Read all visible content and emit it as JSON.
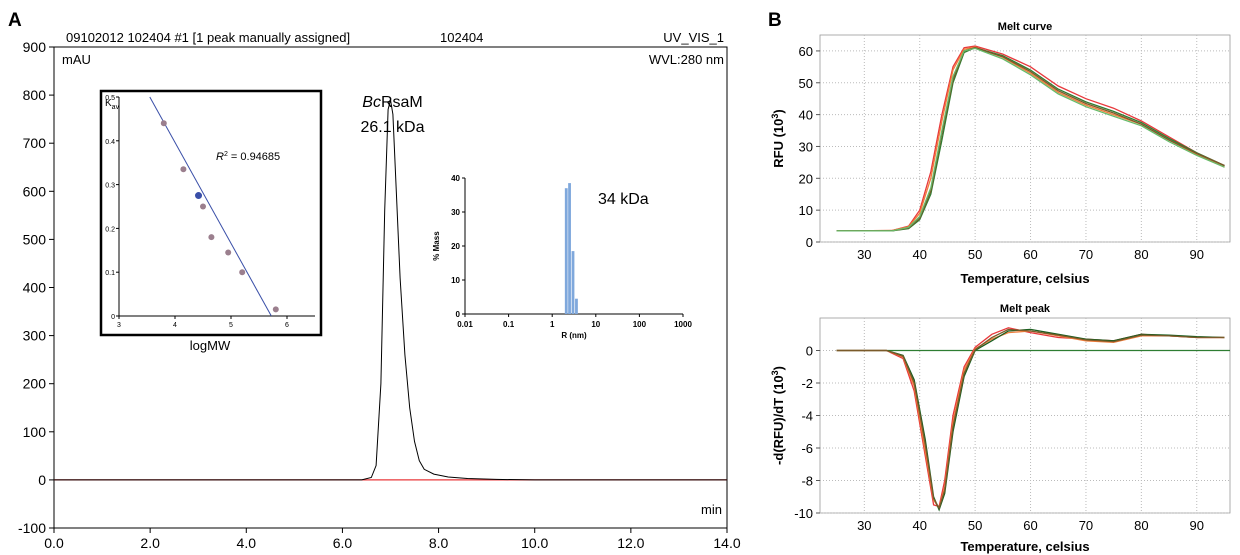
{
  "panel_labels": {
    "a": "A",
    "b": "B"
  },
  "chart_data": [
    {
      "id": "chromatogram",
      "type": "line",
      "header": {
        "left": "09102012 102404 #1 [1 peak manually assigned]",
        "middle": "102404",
        "right": "UV_VIS_1",
        "wvl": "WVL:280 nm"
      },
      "yunit": "mAU",
      "xunit": "min",
      "xlim": [
        0,
        14
      ],
      "ylim": [
        -100,
        900
      ],
      "xticks": [
        0,
        2,
        4,
        6,
        8,
        10,
        12,
        14
      ],
      "xtick_labels": [
        "0.0",
        "2.0",
        "4.0",
        "6.0",
        "8.0",
        "10.0",
        "12.0",
        "14.0"
      ],
      "yticks": [
        -100,
        0,
        100,
        200,
        300,
        400,
        500,
        600,
        700,
        800,
        900
      ],
      "ytick_labels": [
        "-100",
        "0",
        "100",
        "200",
        "300",
        "400",
        "500",
        "600",
        "700",
        "800",
        "900"
      ],
      "baseline_color": "#e8383b",
      "trace_color": "#000000",
      "peak_annotation": {
        "italic": "Bc",
        "rest": "RsaM",
        "mass": "26.1 kDa",
        "x": 7.0,
        "y": 790
      },
      "series": [
        {
          "x": [
            0,
            6.4,
            6.6,
            6.7,
            6.8,
            6.88,
            6.95,
            7.0,
            7.05,
            7.12,
            7.2,
            7.3,
            7.4,
            7.5,
            7.6,
            7.7,
            7.9,
            8.2,
            8.6,
            9.2,
            10,
            14
          ],
          "y": [
            0,
            0,
            5,
            30,
            200,
            560,
            770,
            790,
            760,
            600,
            420,
            260,
            150,
            80,
            40,
            22,
            12,
            6,
            3,
            1,
            0,
            0
          ]
        }
      ]
    },
    {
      "id": "calibration-inset",
      "type": "scatter",
      "ylabel": "K",
      "ylabel_sub": "av",
      "xlabel": "logMW",
      "xlim": [
        3,
        6.5
      ],
      "ylim": [
        0,
        0.5
      ],
      "xticks": [
        3,
        4,
        5,
        6
      ],
      "yticks": [
        0,
        0.1,
        0.2,
        0.3,
        0.4,
        0.5
      ],
      "ytick_labels": [
        "0",
        "0.1",
        "0.2",
        "0.3",
        "0.4",
        "0.5"
      ],
      "r2_label": "R",
      "r2_value": " = 0.94685",
      "points": {
        "x": [
          3.8,
          4.15,
          4.5,
          4.65,
          4.95,
          5.2,
          5.8
        ],
        "y": [
          0.44,
          0.335,
          0.25,
          0.18,
          0.145,
          0.1,
          0.015
        ]
      },
      "sample_point": {
        "x": 4.42,
        "y": 0.275
      },
      "fit_line": {
        "x": [
          3.55,
          5.72
        ],
        "y": [
          0.5,
          0.0
        ]
      },
      "point_color": "#9b7f8e",
      "sample_color": "#3a4fa8",
      "line_color": "#3a4fa8"
    },
    {
      "id": "dls-inset",
      "type": "bar",
      "ylabel": "% Mass",
      "xlabel": "R (nm)",
      "xscale": "log",
      "xlim": [
        0.01,
        1000
      ],
      "ylim": [
        0,
        40
      ],
      "xticks": [
        0.01,
        0.1,
        1,
        10,
        100,
        1000
      ],
      "xtick_labels": [
        "0.01",
        "0.1",
        "1",
        "10",
        "100",
        "1000"
      ],
      "yticks": [
        0,
        10,
        20,
        30,
        40
      ],
      "bars": {
        "x": [
          2.1,
          2.5,
          3.0,
          3.6
        ],
        "y": [
          37,
          38.5,
          18.5,
          4.5
        ]
      },
      "annotation": "34 kDa",
      "bar_color": "#7fa8dc"
    },
    {
      "id": "melt-curve",
      "type": "line",
      "title": "Melt curve",
      "xlabel": "Temperature, celsius",
      "ylabel": "RFU (10",
      "ylabel_sup": "3",
      "ylabel_end": ")",
      "xlim": [
        22,
        96
      ],
      "ylim": [
        0,
        65
      ],
      "xticks": [
        30,
        40,
        50,
        60,
        70,
        80,
        90
      ],
      "yticks": [
        0,
        10,
        20,
        30,
        40,
        50,
        60
      ],
      "series": [
        {
          "color": "#e8383b",
          "x": [
            25,
            35,
            38,
            40,
            42,
            44,
            46,
            48,
            50,
            55,
            60,
            65,
            70,
            75,
            80,
            85,
            90,
            95
          ],
          "y": [
            3.5,
            3.6,
            5,
            10,
            22,
            40,
            55,
            61,
            61.5,
            59,
            55,
            49,
            45,
            42,
            38,
            33,
            28,
            24
          ]
        },
        {
          "color": "#f07d3b",
          "x": [
            25,
            35,
            38,
            40,
            42,
            44,
            46,
            48,
            50,
            55,
            60,
            65,
            70,
            75,
            80,
            85,
            90,
            95
          ],
          "y": [
            3.5,
            3.6,
            4.8,
            9,
            20,
            38,
            54,
            60.5,
            61.2,
            58,
            53,
            47,
            43,
            40,
            37,
            32,
            27.5,
            23.5
          ]
        },
        {
          "color": "#2e7d32",
          "x": [
            25,
            35,
            38,
            40,
            42,
            44,
            46,
            48,
            50,
            55,
            60,
            65,
            70,
            75,
            80,
            85,
            90,
            95
          ],
          "y": [
            3.5,
            3.5,
            4.2,
            7,
            15,
            32,
            50,
            59.5,
            61,
            58.5,
            54,
            48,
            44,
            41,
            37.5,
            32.5,
            28,
            24
          ]
        },
        {
          "color": "#7a5a2a",
          "x": [
            25,
            35,
            38,
            40,
            42,
            44,
            46,
            48,
            50,
            55,
            60,
            65,
            70,
            75,
            80,
            85,
            90,
            95
          ],
          "y": [
            3.5,
            3.5,
            4.4,
            7.5,
            16,
            34,
            51,
            60,
            61,
            58.2,
            53.5,
            47.5,
            43.5,
            40.5,
            37,
            32,
            27.8,
            24
          ]
        },
        {
          "color": "#66bb6a",
          "x": [
            25,
            35,
            38,
            40,
            42,
            44,
            46,
            48,
            50,
            55,
            60,
            65,
            70,
            75,
            80,
            85,
            90,
            95
          ],
          "y": [
            3.5,
            3.5,
            4.6,
            8,
            17,
            35,
            52,
            60,
            60.8,
            57.5,
            52.5,
            46.5,
            42.5,
            39.5,
            36.5,
            31.5,
            27.2,
            23.5
          ]
        }
      ]
    },
    {
      "id": "melt-peak",
      "type": "line",
      "title": "Melt peak",
      "xlabel": "Temperature, celsius",
      "ylabel": "-d(RFU)/dT (10",
      "ylabel_sup": "3",
      "ylabel_end": ")",
      "xlim": [
        22,
        96
      ],
      "ylim": [
        -10,
        2
      ],
      "xticks": [
        30,
        40,
        50,
        60,
        70,
        80,
        90
      ],
      "yticks": [
        -10,
        -8,
        -6,
        -4,
        -2,
        0
      ],
      "series": [
        {
          "color": "#2e7d32",
          "x": [
            25,
            96
          ],
          "y": [
            0,
            0
          ]
        },
        {
          "color": "#e8383b",
          "x": [
            25,
            34,
            37,
            39,
            41,
            42.5,
            43.5,
            44.5,
            46,
            48,
            50,
            53,
            56,
            60,
            65,
            70,
            75,
            80,
            85,
            90,
            95
          ],
          "y": [
            0,
            0,
            -0.5,
            -2.5,
            -6.5,
            -9.5,
            -9.6,
            -8,
            -4,
            -1,
            0.2,
            1.0,
            1.4,
            1.1,
            0.8,
            0.7,
            0.6,
            1.0,
            0.9,
            0.8,
            0.8
          ]
        },
        {
          "color": "#f07d3b",
          "x": [
            25,
            34,
            37,
            39,
            41,
            42.5,
            43.5,
            44.5,
            46,
            48,
            50,
            53,
            56,
            60,
            65,
            70,
            75,
            80,
            85,
            90,
            95
          ],
          "y": [
            0,
            0,
            -0.4,
            -2.2,
            -6.2,
            -9.2,
            -9.7,
            -8.4,
            -4.4,
            -1.2,
            0.1,
            0.7,
            1.1,
            1.2,
            0.9,
            0.6,
            0.5,
            0.9,
            0.9,
            0.8,
            0.8
          ]
        },
        {
          "color": "#1b5e20",
          "x": [
            25,
            34,
            37,
            39,
            41,
            42.5,
            43.5,
            44.5,
            46,
            48,
            50,
            53,
            56,
            60,
            65,
            70,
            75,
            80,
            85,
            90,
            95
          ],
          "y": [
            0,
            0,
            -0.3,
            -1.8,
            -5.5,
            -9.0,
            -9.8,
            -8.8,
            -5,
            -1.6,
            0,
            0.6,
            1.2,
            1.3,
            1.0,
            0.7,
            0.6,
            1.0,
            0.95,
            0.85,
            0.8
          ]
        },
        {
          "color": "#7a5a2a",
          "x": [
            25,
            34,
            37,
            39,
            41,
            42.5,
            43.5,
            44.5,
            46,
            48,
            50,
            53,
            56,
            60,
            65,
            70,
            75,
            80,
            85,
            90,
            95
          ],
          "y": [
            0,
            0,
            -0.35,
            -2.0,
            -5.8,
            -9.1,
            -9.7,
            -8.6,
            -4.7,
            -1.4,
            0.05,
            0.8,
            1.3,
            1.2,
            0.95,
            0.65,
            0.55,
            0.95,
            0.9,
            0.8,
            0.8
          ]
        }
      ]
    }
  ]
}
